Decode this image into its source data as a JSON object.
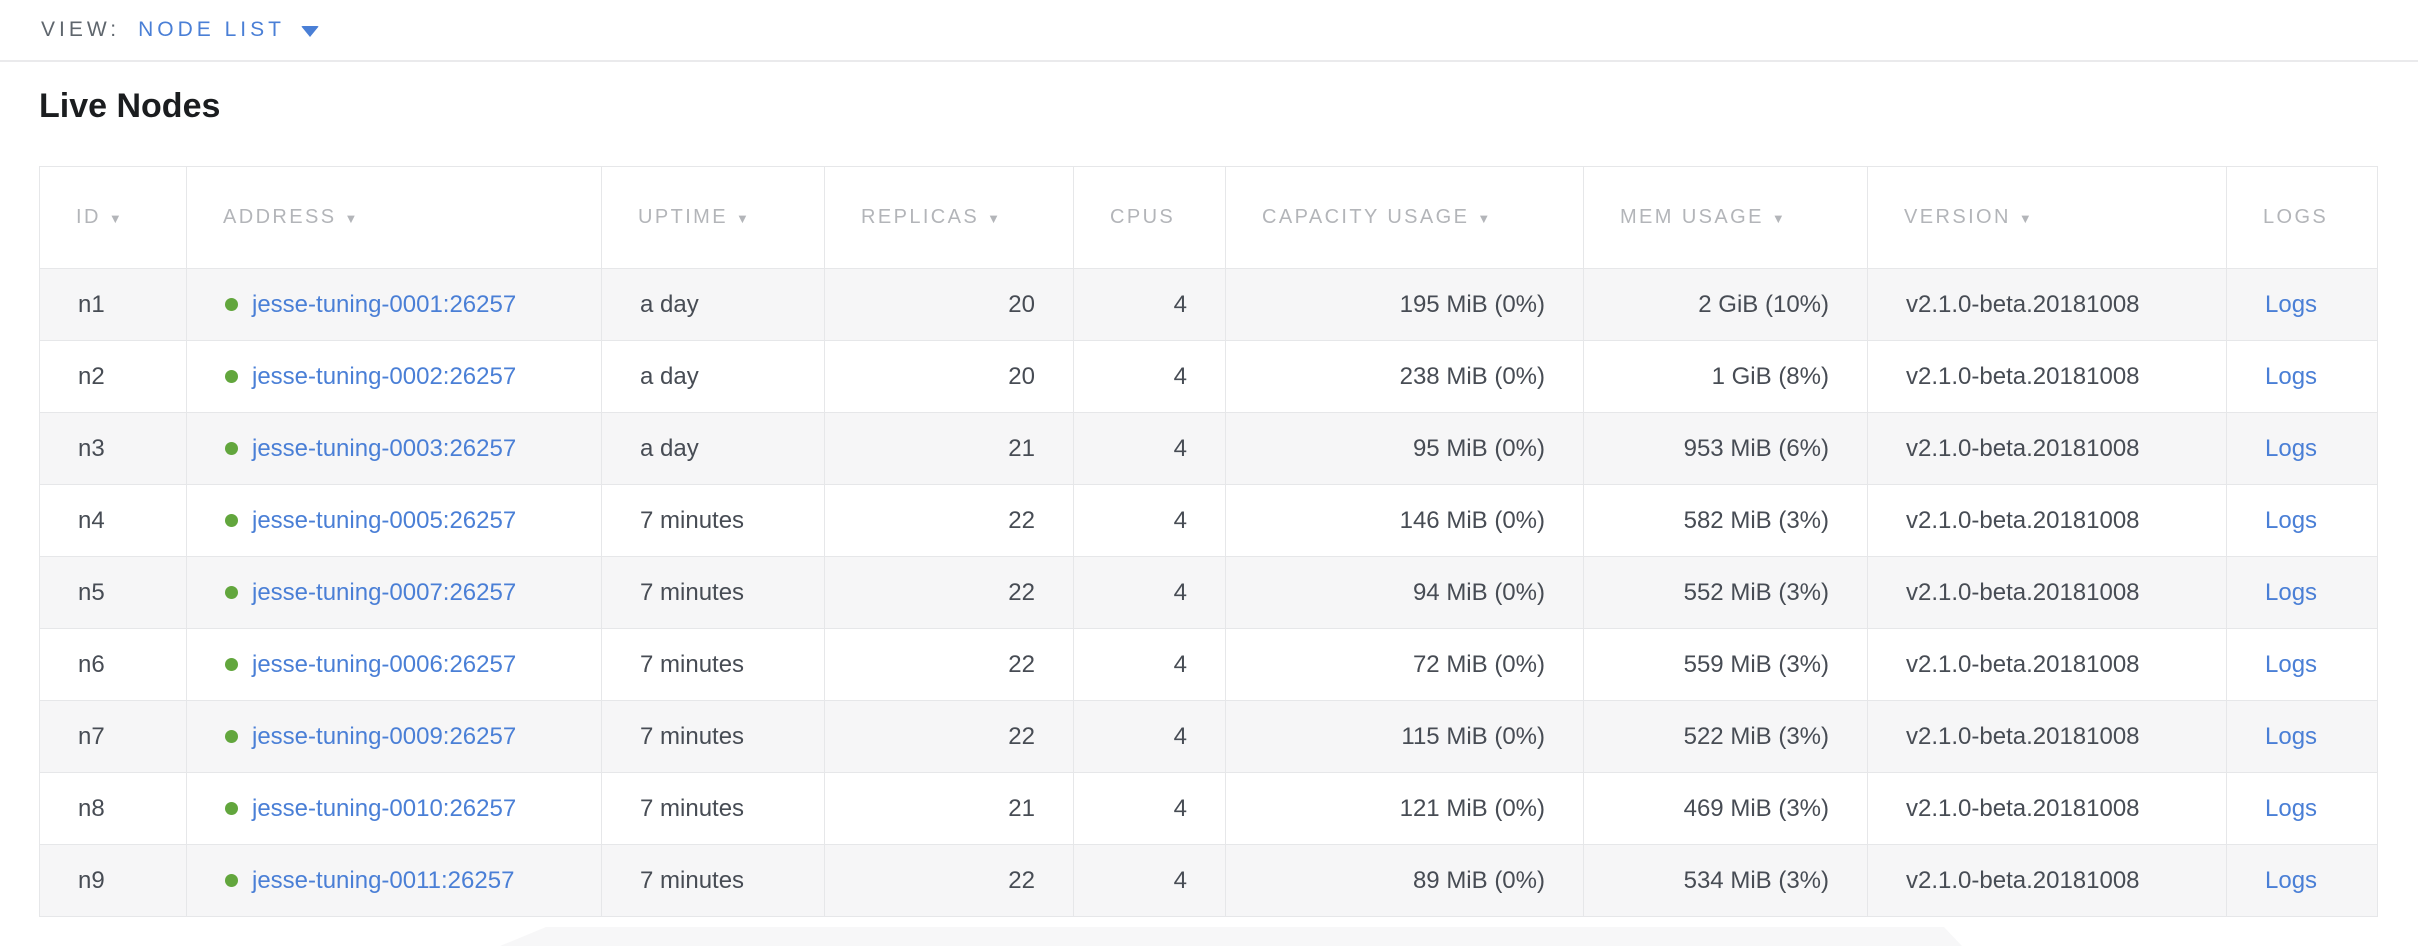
{
  "view_bar": {
    "label": "VIEW:",
    "selected": "NODE LIST"
  },
  "page": {
    "title": "Live Nodes"
  },
  "icons": {
    "sort_desc": "▼",
    "dropdown": "▼",
    "live_dot": "●"
  },
  "colors": {
    "link_blue": "#4a7fd6",
    "live_green": "#62a63d",
    "header_gray": "#b3b5b9",
    "text_dark": "#474c54",
    "title_black": "#1b1d1f",
    "row_stripe": "#f6f6f7",
    "border_gray": "#e6e7e9"
  },
  "table": {
    "columns": [
      {
        "key": "id",
        "label": "ID",
        "sortable": true,
        "align": "left"
      },
      {
        "key": "address",
        "label": "ADDRESS",
        "sortable": true,
        "align": "left"
      },
      {
        "key": "uptime",
        "label": "UPTIME",
        "sortable": true,
        "align": "left"
      },
      {
        "key": "replicas",
        "label": "REPLICAS",
        "sortable": true,
        "align": "right"
      },
      {
        "key": "cpus",
        "label": "CPUS",
        "sortable": false,
        "align": "right"
      },
      {
        "key": "capacity",
        "label": "CAPACITY USAGE",
        "sortable": true,
        "align": "right"
      },
      {
        "key": "mem",
        "label": "MEM USAGE",
        "sortable": true,
        "align": "right"
      },
      {
        "key": "version",
        "label": "VERSION",
        "sortable": true,
        "align": "left"
      },
      {
        "key": "logs",
        "label": "LOGS",
        "sortable": false,
        "align": "left"
      }
    ],
    "rows": [
      {
        "id": "n1",
        "address": "jesse-tuning-0001:26257",
        "status": "live",
        "uptime": "a day",
        "replicas": "20",
        "cpus": "4",
        "capacity": "195 MiB (0%)",
        "mem": "2 GiB (10%)",
        "version": "v2.1.0-beta.20181008",
        "logs": "Logs"
      },
      {
        "id": "n2",
        "address": "jesse-tuning-0002:26257",
        "status": "live",
        "uptime": "a day",
        "replicas": "20",
        "cpus": "4",
        "capacity": "238 MiB (0%)",
        "mem": "1 GiB (8%)",
        "version": "v2.1.0-beta.20181008",
        "logs": "Logs"
      },
      {
        "id": "n3",
        "address": "jesse-tuning-0003:26257",
        "status": "live",
        "uptime": "a day",
        "replicas": "21",
        "cpus": "4",
        "capacity": "95 MiB (0%)",
        "mem": "953 MiB (6%)",
        "version": "v2.1.0-beta.20181008",
        "logs": "Logs"
      },
      {
        "id": "n4",
        "address": "jesse-tuning-0005:26257",
        "status": "live",
        "uptime": "7 minutes",
        "replicas": "22",
        "cpus": "4",
        "capacity": "146 MiB (0%)",
        "mem": "582 MiB (3%)",
        "version": "v2.1.0-beta.20181008",
        "logs": "Logs"
      },
      {
        "id": "n5",
        "address": "jesse-tuning-0007:26257",
        "status": "live",
        "uptime": "7 minutes",
        "replicas": "22",
        "cpus": "4",
        "capacity": "94 MiB (0%)",
        "mem": "552 MiB (3%)",
        "version": "v2.1.0-beta.20181008",
        "logs": "Logs"
      },
      {
        "id": "n6",
        "address": "jesse-tuning-0006:26257",
        "status": "live",
        "uptime": "7 minutes",
        "replicas": "22",
        "cpus": "4",
        "capacity": "72 MiB (0%)",
        "mem": "559 MiB (3%)",
        "version": "v2.1.0-beta.20181008",
        "logs": "Logs"
      },
      {
        "id": "n7",
        "address": "jesse-tuning-0009:26257",
        "status": "live",
        "uptime": "7 minutes",
        "replicas": "22",
        "cpus": "4",
        "capacity": "115 MiB (0%)",
        "mem": "522 MiB (3%)",
        "version": "v2.1.0-beta.20181008",
        "logs": "Logs"
      },
      {
        "id": "n8",
        "address": "jesse-tuning-0010:26257",
        "status": "live",
        "uptime": "7 minutes",
        "replicas": "21",
        "cpus": "4",
        "capacity": "121 MiB (0%)",
        "mem": "469 MiB (3%)",
        "version": "v2.1.0-beta.20181008",
        "logs": "Logs"
      },
      {
        "id": "n9",
        "address": "jesse-tuning-0011:26257",
        "status": "live",
        "uptime": "7 minutes",
        "replicas": "22",
        "cpus": "4",
        "capacity": "89 MiB (0%)",
        "mem": "534 MiB (3%)",
        "version": "v2.1.0-beta.20181008",
        "logs": "Logs"
      }
    ]
  }
}
